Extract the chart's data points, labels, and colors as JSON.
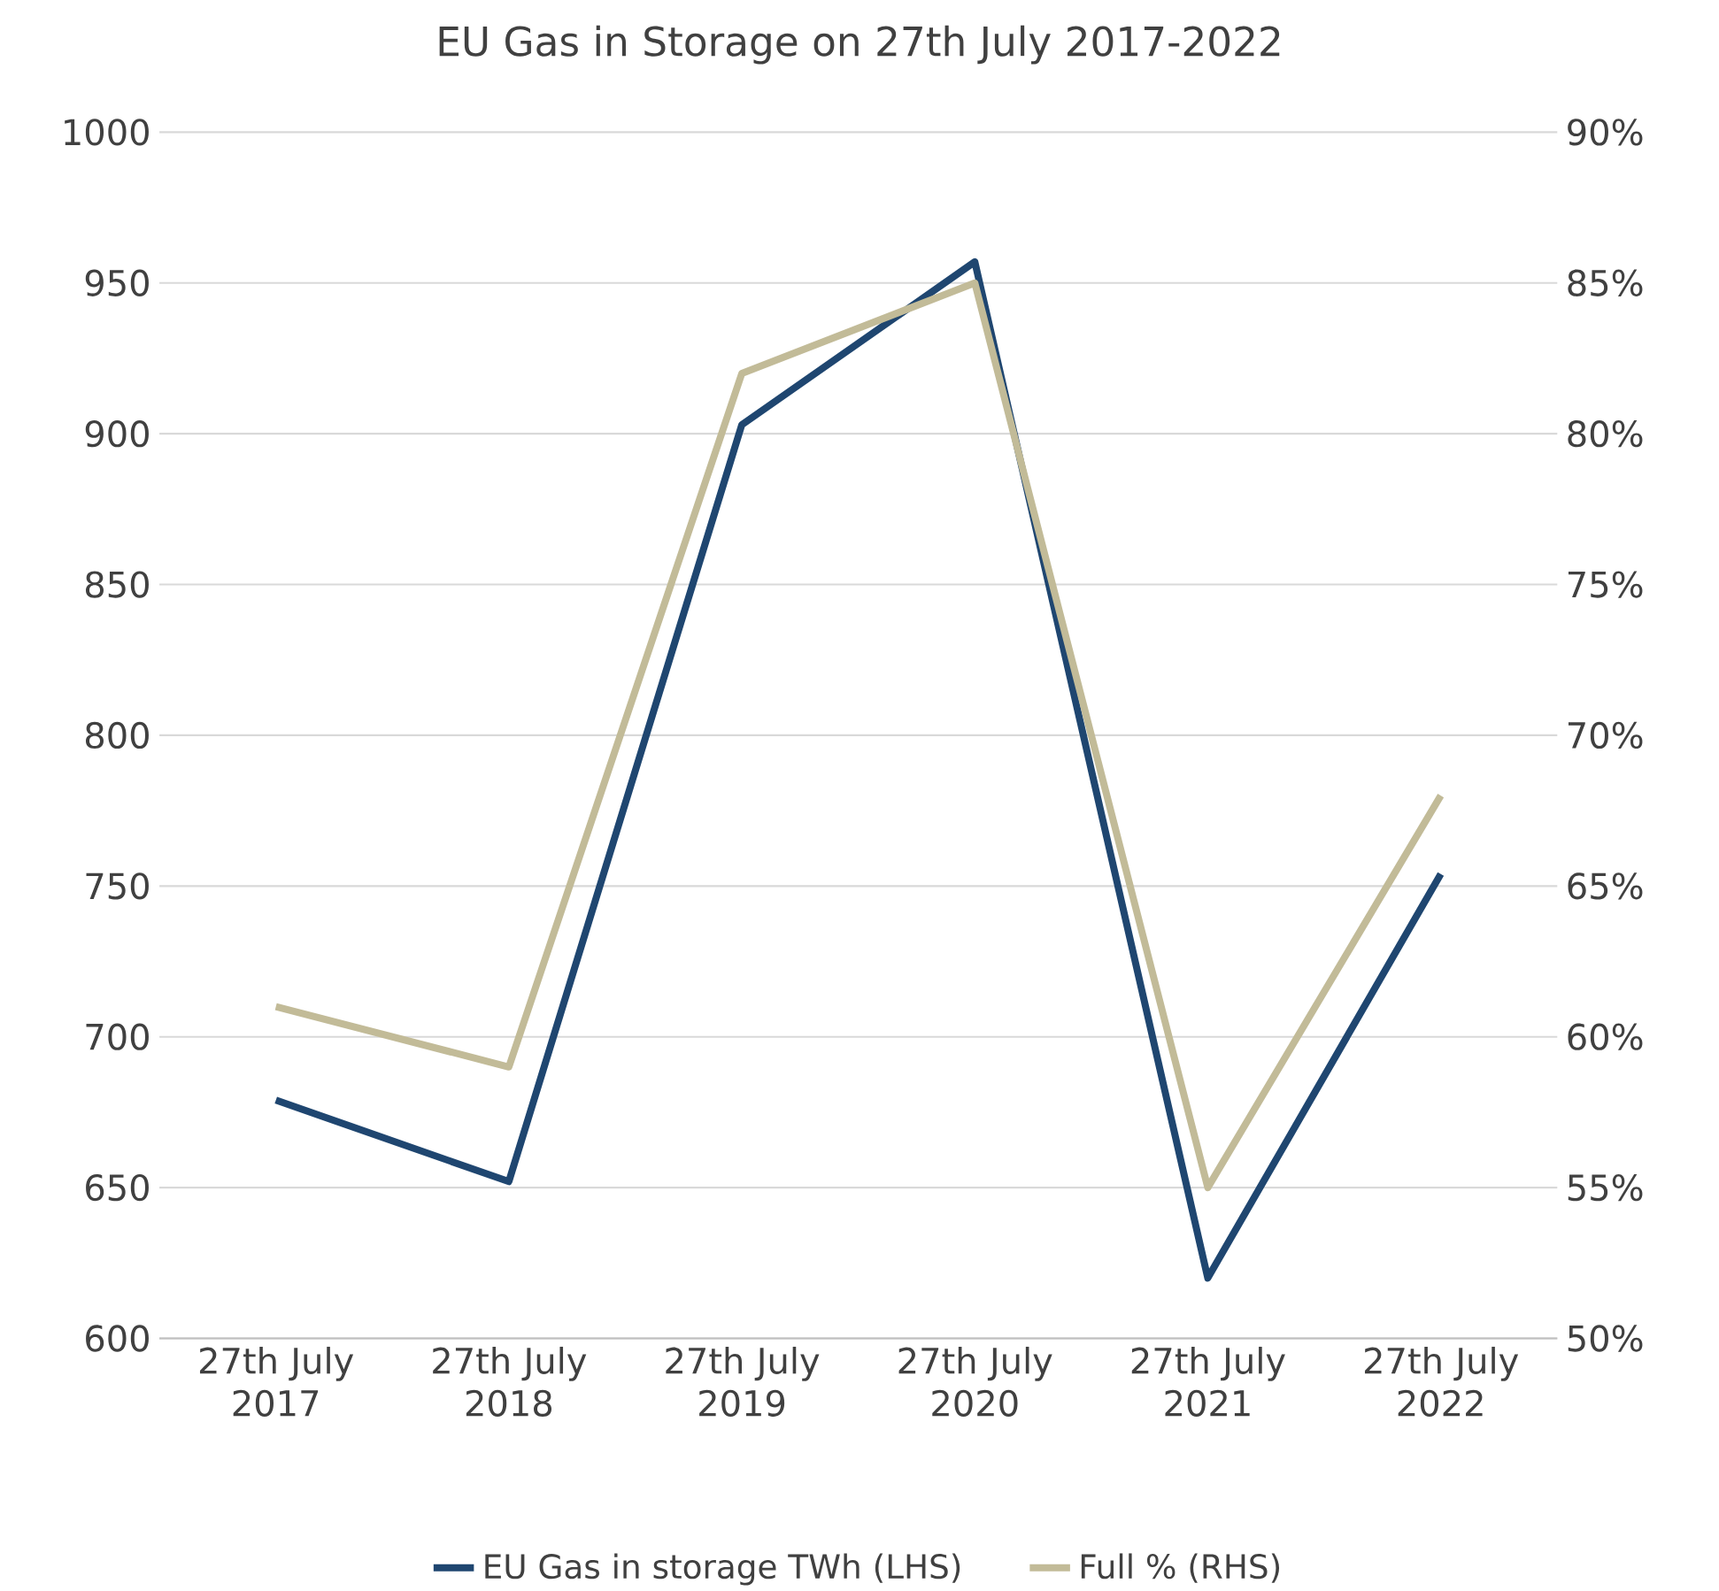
{
  "chart_data": {
    "type": "line",
    "title": "EU Gas in Storage on 27th July 2017-2022",
    "categories": [
      "27th July 2017",
      "27th July 2018",
      "27th July 2019",
      "27th July 2020",
      "27th July 2021",
      "27th July 2022"
    ],
    "series": [
      {
        "name": "EU Gas in storage TWh (LHS)",
        "color": "#1f4670",
        "values": [
          679,
          652,
          903,
          957,
          620,
          754
        ]
      },
      {
        "name": "Full % (RHS)",
        "color": "#c2bb98",
        "axis": "y2",
        "values": [
          61,
          59,
          82,
          85,
          55,
          68
        ]
      }
    ],
    "ylim": [
      600,
      1000
    ],
    "yticks": [
      600,
      650,
      700,
      750,
      800,
      850,
      900,
      950,
      1000
    ],
    "y2lim": [
      50,
      90
    ],
    "y2ticks": [
      {
        "value": 50,
        "label": "50%"
      },
      {
        "value": 55,
        "label": "55%"
      },
      {
        "value": 60,
        "label": "60%"
      },
      {
        "value": 65,
        "label": "65%"
      },
      {
        "value": 70,
        "label": "70%"
      },
      {
        "value": 75,
        "label": "75%"
      },
      {
        "value": 80,
        "label": "80%"
      },
      {
        "value": 85,
        "label": "85%"
      },
      {
        "value": 90,
        "label": "90%"
      }
    ],
    "grid": "y",
    "legend": "bottom",
    "marker": "none",
    "line_style": "solid"
  }
}
